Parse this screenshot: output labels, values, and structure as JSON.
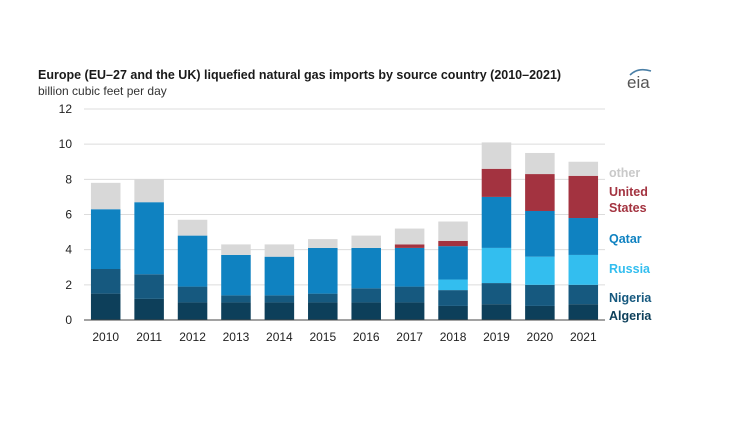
{
  "chart_data": {
    "type": "bar",
    "stacked": true,
    "title": "Europe (EU–27 and the UK) liquefied natural gas imports by source country (2010–2021)",
    "subtitle": "billion cubic feet per day",
    "categories": [
      "2010",
      "2011",
      "2012",
      "2013",
      "2014",
      "2015",
      "2016",
      "2017",
      "2018",
      "2019",
      "2020",
      "2021"
    ],
    "ylim": [
      0,
      12
    ],
    "yticks": [
      0,
      2,
      4,
      6,
      8,
      10,
      12
    ],
    "grid": true,
    "legend_placement": "right (inline labels)",
    "series": [
      {
        "name": "Algeria",
        "color": "#0d3f5a",
        "values": [
          1.5,
          1.2,
          1.0,
          1.0,
          1.0,
          1.0,
          1.0,
          1.0,
          0.8,
          0.9,
          0.8,
          0.9
        ]
      },
      {
        "name": "Nigeria",
        "color": "#16597f",
        "values": [
          1.4,
          1.4,
          0.9,
          0.4,
          0.4,
          0.5,
          0.8,
          0.9,
          0.9,
          1.2,
          1.2,
          1.1
        ]
      },
      {
        "name": "Russia",
        "color": "#33beef",
        "values": [
          0.0,
          0.0,
          0.0,
          0.0,
          0.0,
          0.0,
          0.0,
          0.0,
          0.6,
          2.0,
          1.6,
          1.7
        ]
      },
      {
        "name": "Qatar",
        "color": "#0f82c1",
        "values": [
          3.4,
          4.1,
          2.9,
          2.3,
          2.2,
          2.6,
          2.3,
          2.2,
          1.9,
          2.9,
          2.6,
          2.1
        ]
      },
      {
        "name": "United States",
        "color": "#a33340",
        "values": [
          0.0,
          0.0,
          0.0,
          0.0,
          0.0,
          0.0,
          0.0,
          0.2,
          0.3,
          1.6,
          2.1,
          2.4
        ]
      },
      {
        "name": "other",
        "color": "#d8d8d8",
        "values": [
          1.5,
          1.3,
          0.9,
          0.6,
          0.7,
          0.5,
          0.7,
          0.9,
          1.1,
          1.5,
          1.2,
          0.8
        ]
      }
    ],
    "legend_labels": [
      {
        "series": "other",
        "lines": [
          "other"
        ],
        "color": "#c9c9c9"
      },
      {
        "series": "United States",
        "lines": [
          "United",
          "States"
        ],
        "color": "#a33340"
      },
      {
        "series": "Qatar",
        "lines": [
          "Qatar"
        ],
        "color": "#0f82c1"
      },
      {
        "series": "Russia",
        "lines": [
          "Russia"
        ],
        "color": "#33beef"
      },
      {
        "series": "Nigeria",
        "lines": [
          "Nigeria"
        ],
        "color": "#16597f"
      },
      {
        "series": "Algeria",
        "lines": [
          "Algeria"
        ],
        "color": "#0d3f5a"
      }
    ]
  },
  "logo": {
    "text": "eia",
    "icon": "eia-logo-icon"
  }
}
